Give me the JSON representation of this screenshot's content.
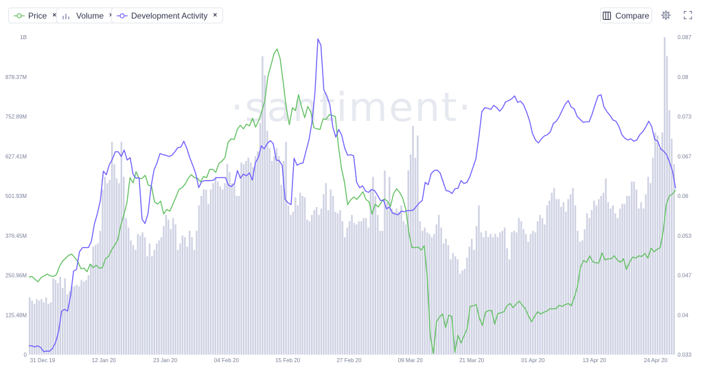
{
  "toolbar": {
    "chips": [
      {
        "label": "Price",
        "icon": "price-line-icon",
        "color": "#5fbf5f"
      },
      {
        "label": "Volume",
        "icon": "volume-bars-icon",
        "color": "#a7adc6"
      },
      {
        "label": "Development Activity",
        "icon": "dev-activity-line-icon",
        "color": "#6b5cff"
      }
    ],
    "close_glyph": "×",
    "compare_label": "Compare",
    "settings_icon": "gear-icon",
    "fullscreen_icon": "fullscreen-icon"
  },
  "watermark": "·santiment·",
  "chart_data": {
    "type": "bar+line",
    "grid": false,
    "x_tick_labels": [
      "31 Dec 19",
      "12 Jan 20",
      "23 Jan 20",
      "04 Feb 20",
      "15 Feb 20",
      "27 Feb 20",
      "09 Mar 20",
      "21 Mar 20",
      "01 Apr 20",
      "13 Apr 20",
      "24 Apr 20"
    ],
    "left_axis_ticks": [
      "0",
      "125.48M",
      "250.96M",
      "376.45M",
      "501.93M",
      "627.41M",
      "752.89M",
      "878.37M",
      "1B"
    ],
    "left_axis_range": [
      0,
      1000000000
    ],
    "right_axis_ticks": [
      "0.033",
      "0.04",
      "0.047",
      "0.053",
      "0.06",
      "0.067",
      "0.073",
      "0.08",
      "0.087"
    ],
    "right_axis_range": [
      0.033,
      0.087
    ],
    "series": [
      {
        "name": "Volume",
        "axis": "left",
        "type": "bar",
        "color": "#cfd2e3",
        "values": [
          180,
          170,
          160,
          175,
          170,
          175,
          165,
          180,
          160,
          165,
          240,
          235,
          225,
          245,
          210,
          240,
          190,
          200,
          215,
          215,
          220,
          215,
          235,
          230,
          235,
          250,
          285,
          340,
          345,
          350,
          390,
          520,
          560,
          540,
          550,
          670,
          600,
          555,
          540,
          670,
          560,
          430,
          400,
          360,
          345,
          330,
          380,
          375,
          385,
          370,
          310,
          350,
          310,
          330,
          350,
          360,
          370,
          405,
          440,
          425,
          395,
          430,
          410,
          330,
          350,
          375,
          370,
          340,
          390,
          370,
          330,
          390,
          470,
          500,
          520,
          520,
          475,
          520,
          540,
          560,
          545,
          530,
          520,
          540,
          600,
          575,
          540,
          540,
          500,
          500,
          605,
          600,
          610,
          620,
          605,
          590,
          625,
          640,
          730,
          940,
          880,
          705,
          650,
          610,
          625,
          650,
          625,
          535,
          610,
          670,
          470,
          440,
          450,
          495,
          470,
          510,
          500,
          495,
          425,
          420,
          440,
          455,
          465,
          440,
          460,
          505,
          540,
          455,
          520,
          500,
          450,
          445,
          455,
          420,
          370,
          400,
          420,
          440,
          415,
          410,
          420,
          420,
          430,
          430,
          400,
          520,
          560,
          500,
          440,
          390,
          390,
          580,
          480,
          560,
          460,
          450,
          460,
          450,
          470,
          420,
          410,
          580,
          630,
          720,
          620,
          690,
          420,
          390,
          400,
          385,
          380,
          370,
          380,
          410,
          440,
          400,
          350,
          365,
          345,
          300,
          320,
          310,
          300,
          255,
          265,
          270,
          305,
          340,
          365,
          330,
          405,
          470,
          385,
          370,
          390,
          370,
          380,
          370,
          380,
          370,
          385,
          390,
          400,
          335,
          300,
          385,
          390,
          385,
          430,
          420,
          395,
          380,
          355,
          380,
          390,
          385,
          420,
          440,
          430,
          410,
          470,
          485,
          510,
          525,
          490,
          490,
          465,
          480,
          450,
          490,
          505,
          525,
          470,
          390,
          355,
          360,
          395,
          445,
          430,
          455,
          485,
          470,
          490,
          500,
          510,
          555,
          480,
          460,
          470,
          445,
          430,
          460,
          475,
          475,
          500,
          500,
          545,
          545,
          520,
          460,
          480,
          460,
          505,
          560,
          540,
          620,
          700,
          690,
          650,
          700,
          1000,
          940,
          770,
          680,
          600
        ]
      },
      {
        "name": "Price",
        "axis": "right",
        "type": "line",
        "color": "#5fbf5f",
        "values": [
          0.0462,
          0.0463,
          0.0458,
          0.0454,
          0.0461,
          0.0464,
          0.0467,
          0.0464,
          0.0463,
          0.0466,
          0.048,
          0.0489,
          0.0494,
          0.0499,
          0.0501,
          0.0495,
          0.0488,
          0.0476,
          0.0477,
          0.0471,
          0.0484,
          0.0478,
          0.0482,
          0.0477,
          0.0478,
          0.0493,
          0.0497,
          0.0508,
          0.0516,
          0.0525,
          0.055,
          0.0568,
          0.0588,
          0.0631,
          0.0622,
          0.0641,
          0.0629,
          0.063,
          0.0635,
          0.0618,
          0.0617,
          0.059,
          0.0586,
          0.0591,
          0.0569,
          0.0577,
          0.0574,
          0.0586,
          0.0598,
          0.0611,
          0.0614,
          0.062,
          0.063,
          0.0636,
          0.0631,
          0.063,
          0.0624,
          0.0633,
          0.0631,
          0.0645,
          0.0645,
          0.064,
          0.0655,
          0.0659,
          0.0665,
          0.0691,
          0.0697,
          0.0696,
          0.0713,
          0.072,
          0.0714,
          0.0722,
          0.0719,
          0.0732,
          0.0717,
          0.0728,
          0.0743,
          0.0762,
          0.0803,
          0.0822,
          0.0842,
          0.085,
          0.0833,
          0.0793,
          0.0749,
          0.0721,
          0.075,
          0.0745,
          0.0772,
          0.0751,
          0.0733,
          0.0752,
          0.0743,
          0.0716,
          0.0714,
          0.0713,
          0.0731,
          0.073,
          0.0738,
          0.0737,
          0.0735,
          0.0685,
          0.0647,
          0.0623,
          0.0585,
          0.0593,
          0.0598,
          0.0594,
          0.06,
          0.0607,
          0.0594,
          0.059,
          0.0569,
          0.0586,
          0.0581,
          0.0589,
          0.0595,
          0.0591,
          0.0582,
          0.0604,
          0.0612,
          0.0606,
          0.0596,
          0.0577,
          0.0537,
          0.0512,
          0.0512,
          0.0513,
          0.0508,
          0.0515,
          0.0461,
          0.0361,
          0.0332,
          0.0386,
          0.0394,
          0.0399,
          0.0376,
          0.0397,
          0.0395,
          0.0334,
          0.0363,
          0.035,
          0.0362,
          0.0374,
          0.0412,
          0.0413,
          0.0415,
          0.0392,
          0.038,
          0.0402,
          0.0405,
          0.0405,
          0.0382,
          0.04,
          0.0401,
          0.0403,
          0.0413,
          0.0417,
          0.041,
          0.0416,
          0.0421,
          0.0414,
          0.0408,
          0.0396,
          0.0386,
          0.0395,
          0.0403,
          0.0399,
          0.0402,
          0.0404,
          0.0408,
          0.0408,
          0.0408,
          0.0414,
          0.0412,
          0.0415,
          0.0417,
          0.0413,
          0.0428,
          0.0446,
          0.0479,
          0.049,
          0.0487,
          0.0498,
          0.0488,
          0.0486,
          0.0486,
          0.0503,
          0.0491,
          0.0493,
          0.0493,
          0.0498,
          0.0491,
          0.0487,
          0.0493,
          0.0475,
          0.0487,
          0.0496,
          0.0494,
          0.0498,
          0.0497,
          0.0502,
          0.0494,
          0.0511,
          0.0505,
          0.0509,
          0.0512,
          0.0541,
          0.0586,
          0.06,
          0.0603,
          0.061
        ]
      },
      {
        "name": "Development Activity",
        "axis": "right",
        "type": "line",
        "color": "#6b5cff",
        "values": [
          0.0345,
          0.0345,
          0.0343,
          0.0345,
          0.0342,
          0.0335,
          0.0336,
          0.0336,
          0.0341,
          0.0351,
          0.037,
          0.0404,
          0.0407,
          0.0404,
          0.043,
          0.0472,
          0.0475,
          0.0505,
          0.0512,
          0.0512,
          0.0512,
          0.0523,
          0.0552,
          0.057,
          0.0592,
          0.0642,
          0.0636,
          0.0653,
          0.0662,
          0.0675,
          0.0675,
          0.0667,
          0.0678,
          0.0661,
          0.0665,
          0.0636,
          0.063,
          0.0631,
          0.056,
          0.0553,
          0.057,
          0.0615,
          0.0644,
          0.0656,
          0.0672,
          0.067,
          0.0669,
          0.0667,
          0.0669,
          0.0675,
          0.0682,
          0.0683,
          0.0693,
          0.0681,
          0.0665,
          0.0652,
          0.0638,
          0.0614,
          0.0624,
          0.0626,
          0.0626,
          0.0626,
          0.0627,
          0.0631,
          0.0631,
          0.0631,
          0.0631,
          0.0618,
          0.0616,
          0.0621,
          0.0643,
          0.063,
          0.0637,
          0.0634,
          0.0639,
          0.0627,
          0.0656,
          0.0665,
          0.0685,
          0.068,
          0.0689,
          0.0694,
          0.0689,
          0.0661,
          0.066,
          0.0652,
          0.0594,
          0.0588,
          0.0585,
          0.0664,
          0.0652,
          0.0655,
          0.0656,
          0.0676,
          0.0695,
          0.0725,
          0.0775,
          0.0867,
          0.0856,
          0.078,
          0.077,
          0.0755,
          0.0717,
          0.07,
          0.0713,
          0.0703,
          0.0681,
          0.0669,
          0.067,
          0.0668,
          0.0623,
          0.0614,
          0.0617,
          0.0608,
          0.0606,
          0.0611,
          0.0609,
          0.0601,
          0.0592,
          0.0593,
          0.0578,
          0.0581,
          0.0571,
          0.0569,
          0.0568,
          0.0574,
          0.0573,
          0.0575,
          0.0575,
          0.0576,
          0.0582,
          0.0588,
          0.0592,
          0.0623,
          0.0619,
          0.0638,
          0.0643,
          0.0644,
          0.0639,
          0.0624,
          0.0609,
          0.0608,
          0.0604,
          0.0612,
          0.0613,
          0.0626,
          0.0621,
          0.0623,
          0.0633,
          0.0648,
          0.0663,
          0.07,
          0.0743,
          0.075,
          0.0749,
          0.0747,
          0.0754,
          0.075,
          0.0744,
          0.075,
          0.076,
          0.0762,
          0.0765,
          0.077,
          0.0759,
          0.0761,
          0.0755,
          0.0743,
          0.0728,
          0.0706,
          0.0695,
          0.069,
          0.0697,
          0.0702,
          0.0704,
          0.0709,
          0.0723,
          0.0727,
          0.0735,
          0.0746,
          0.0756,
          0.0762,
          0.0751,
          0.0748,
          0.0735,
          0.073,
          0.0725,
          0.0726,
          0.0726,
          0.0739,
          0.0755,
          0.077,
          0.0772,
          0.0751,
          0.0743,
          0.0737,
          0.0729,
          0.0727,
          0.0718,
          0.0704,
          0.0698,
          0.0695,
          0.0697,
          0.0693,
          0.0695,
          0.0704,
          0.0709,
          0.0717,
          0.0727,
          0.0718,
          0.0696,
          0.0693,
          0.068,
          0.0676,
          0.067,
          0.0657,
          0.0642,
          0.0613
        ]
      }
    ]
  }
}
